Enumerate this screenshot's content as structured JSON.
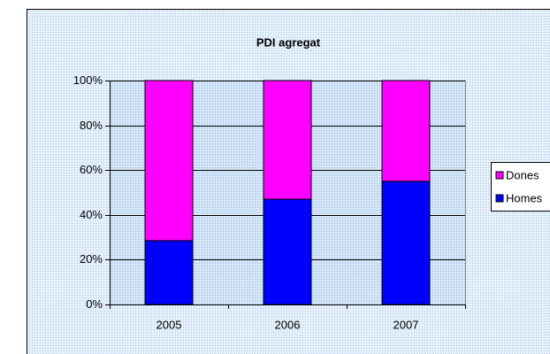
{
  "chart_data": {
    "type": "stacked_bar_percent",
    "title": "PDI agregat",
    "categories": [
      "2005",
      "2006",
      "2007"
    ],
    "series": [
      {
        "name": "Homes",
        "color": "#0000ff",
        "values": [
          28.5,
          47,
          55
        ]
      },
      {
        "name": "Dones",
        "color": "#ff00ff",
        "values": [
          71.5,
          53,
          45
        ]
      }
    ],
    "ylim": [
      0,
      100
    ],
    "yticks": [
      {
        "value": 0,
        "label": "0%"
      },
      {
        "value": 20,
        "label": "20%"
      },
      {
        "value": 40,
        "label": "40%"
      },
      {
        "value": 60,
        "label": "60%"
      },
      {
        "value": 80,
        "label": "80%"
      },
      {
        "value": 100,
        "label": "100%"
      }
    ],
    "grid": true,
    "legend": "right"
  }
}
